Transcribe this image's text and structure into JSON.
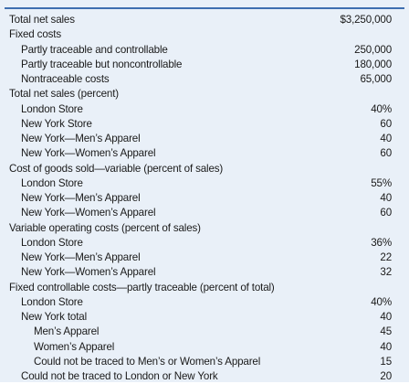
{
  "rows": [
    {
      "label": "Total net sales",
      "value": "$3,250,000",
      "level": 0
    },
    {
      "label": "Fixed costs",
      "value": "",
      "level": 0
    },
    {
      "label": "Partly traceable and controllable",
      "value": "250,000",
      "level": 1
    },
    {
      "label": "Partly traceable but noncontrollable",
      "value": "180,000",
      "level": 1
    },
    {
      "label": "Nontraceable costs",
      "value": "65,000",
      "level": 1
    },
    {
      "label": "Total net sales (percent)",
      "value": "",
      "level": 0
    },
    {
      "label": "London Store",
      "value": "40%",
      "level": 1
    },
    {
      "label": "New York Store",
      "value": "60",
      "level": 1
    },
    {
      "label": "New York—Men’s Apparel",
      "value": "40",
      "level": 1
    },
    {
      "label": "New York—Women’s Apparel",
      "value": "60",
      "level": 1
    },
    {
      "label": "Cost of goods sold—variable (percent of sales)",
      "value": "",
      "level": 0
    },
    {
      "label": "London Store",
      "value": "55%",
      "level": 1
    },
    {
      "label": "New York—Men’s Apparel",
      "value": "40",
      "level": 1
    },
    {
      "label": "New York—Women’s Apparel",
      "value": "60",
      "level": 1
    },
    {
      "label": "Variable operating costs (percent of sales)",
      "value": "",
      "level": 0
    },
    {
      "label": "London Store",
      "value": "36%",
      "level": 1
    },
    {
      "label": "New York—Men’s Apparel",
      "value": "22",
      "level": 1
    },
    {
      "label": "New York—Women’s Apparel",
      "value": "32",
      "level": 1
    },
    {
      "label": "Fixed controllable costs—partly traceable (percent of total)",
      "value": "",
      "level": 0
    },
    {
      "label": "London Store",
      "value": "40%",
      "level": 1
    },
    {
      "label": "New York total",
      "value": "40",
      "level": 1
    },
    {
      "label": "Men’s Apparel",
      "value": "45",
      "level": 2
    },
    {
      "label": "Women’s Apparel",
      "value": "40",
      "level": 2
    },
    {
      "label": "Could not be traced to Men’s or Women’s Apparel",
      "value": "15",
      "level": 2
    },
    {
      "label": "Could not be traced to London or New York",
      "value": "20",
      "level": 1
    }
  ],
  "colors": {
    "panel_background": "#e9f0f8",
    "rule": "#3f6fb0",
    "text": "#1a1a1a"
  }
}
